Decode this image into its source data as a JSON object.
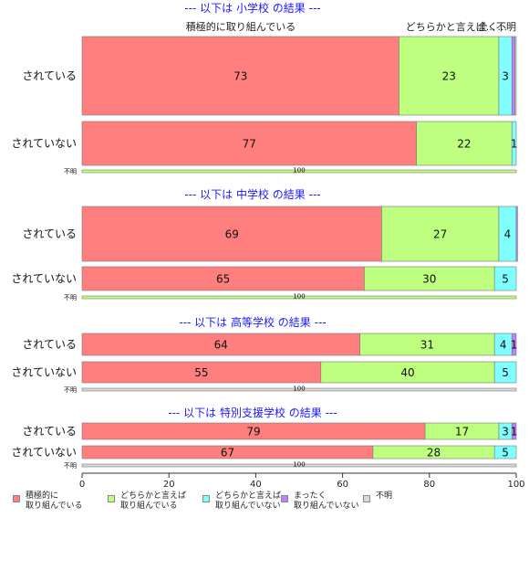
{
  "chart_data": {
    "type": "bar",
    "orientation": "horizontal",
    "stacked": true,
    "xlim": [
      0,
      100
    ],
    "x_ticks": [
      "0",
      "20",
      "40",
      "60",
      "80",
      "100"
    ],
    "legend_position": "bottom",
    "colors": {
      "積極的に取り組んでいる": "#ff7f7f",
      "どちらかと言えば取り組んでいる": "#bfff7f",
      "どちらかと言えば取り組んでいない": "#7fffff",
      "まったく取り組んでいない": "#bf7fff",
      "不明": "#d9d9d9"
    },
    "legend": [
      {
        "name": "積極的に取り組んでいる",
        "label": "積極的に\n取り組んでいる"
      },
      {
        "name": "どちらかと言えば取り組んでいる",
        "label": "どちらかと言えば\n取り組んでいる"
      },
      {
        "name": "どちらかと言えば取り組んでいない",
        "label": "どちらかと言えば\n取り組んでいない"
      },
      {
        "name": "まったく取り組んでいない",
        "label": "まったく\n取り組んでいない"
      },
      {
        "name": "不明",
        "label": "不明"
      }
    ],
    "top_annotations": [
      "積極的に取り組んでいる",
      "どちらかと言えば...",
      "全く...",
      "不明"
    ],
    "panels": [
      {
        "title": "--- 以下は 小学校 の結果 ---",
        "rows": [
          {
            "label": "されている",
            "values": [
              73,
              23,
              3,
              0.7,
              0.3
            ],
            "labels": [
              "73",
              "23",
              "3",
              "",
              ""
            ]
          },
          {
            "label": "されていない",
            "values": [
              77,
              22,
              1,
              0,
              0
            ],
            "labels": [
              "77",
              "22",
              "1",
              "",
              ""
            ]
          },
          {
            "label": "不明",
            "values": [
              0,
              100,
              0,
              0,
              0
            ],
            "labels": [
              "",
              "100",
              "",
              "",
              ""
            ]
          }
        ]
      },
      {
        "title": "--- 以下は 中学校 の結果 ---",
        "rows": [
          {
            "label": "されている",
            "values": [
              69,
              27,
              4,
              0.3,
              0
            ],
            "labels": [
              "69",
              "27",
              "4",
              "",
              ""
            ]
          },
          {
            "label": "されていない",
            "values": [
              65,
              30,
              5,
              0,
              0
            ],
            "labels": [
              "65",
              "30",
              "5",
              "",
              ""
            ]
          },
          {
            "label": "不明",
            "values": [
              0,
              100,
              0,
              0,
              0
            ],
            "labels": [
              "",
              "100",
              "",
              "",
              ""
            ]
          }
        ]
      },
      {
        "title": "--- 以下は 高等学校 の結果 ---",
        "rows": [
          {
            "label": "されている",
            "values": [
              64,
              31,
              4,
              1,
              0
            ],
            "labels": [
              "64",
              "31",
              "4",
              "1",
              ""
            ]
          },
          {
            "label": "されていない",
            "values": [
              55,
              40,
              5,
              0,
              0
            ],
            "labels": [
              "55",
              "40",
              "5",
              "",
              ""
            ]
          },
          {
            "label": "不明",
            "values": [
              0,
              0,
              0,
              0,
              100
            ],
            "labels": [
              "",
              "",
              "",
              "",
              "100"
            ]
          }
        ]
      },
      {
        "title": "--- 以下は 特別支援学校 の結果 ---",
        "rows": [
          {
            "label": "されている",
            "values": [
              79,
              17,
              3,
              1,
              0
            ],
            "labels": [
              "79",
              "17",
              "3",
              "1",
              ""
            ]
          },
          {
            "label": "されていない",
            "values": [
              67,
              28,
              5,
              0,
              0
            ],
            "labels": [
              "67",
              "28",
              "5",
              "",
              ""
            ]
          },
          {
            "label": "不明",
            "values": [
              0,
              0,
              0,
              0,
              100
            ],
            "labels": [
              "",
              "",
              "",
              "",
              "100"
            ]
          }
        ]
      }
    ]
  }
}
